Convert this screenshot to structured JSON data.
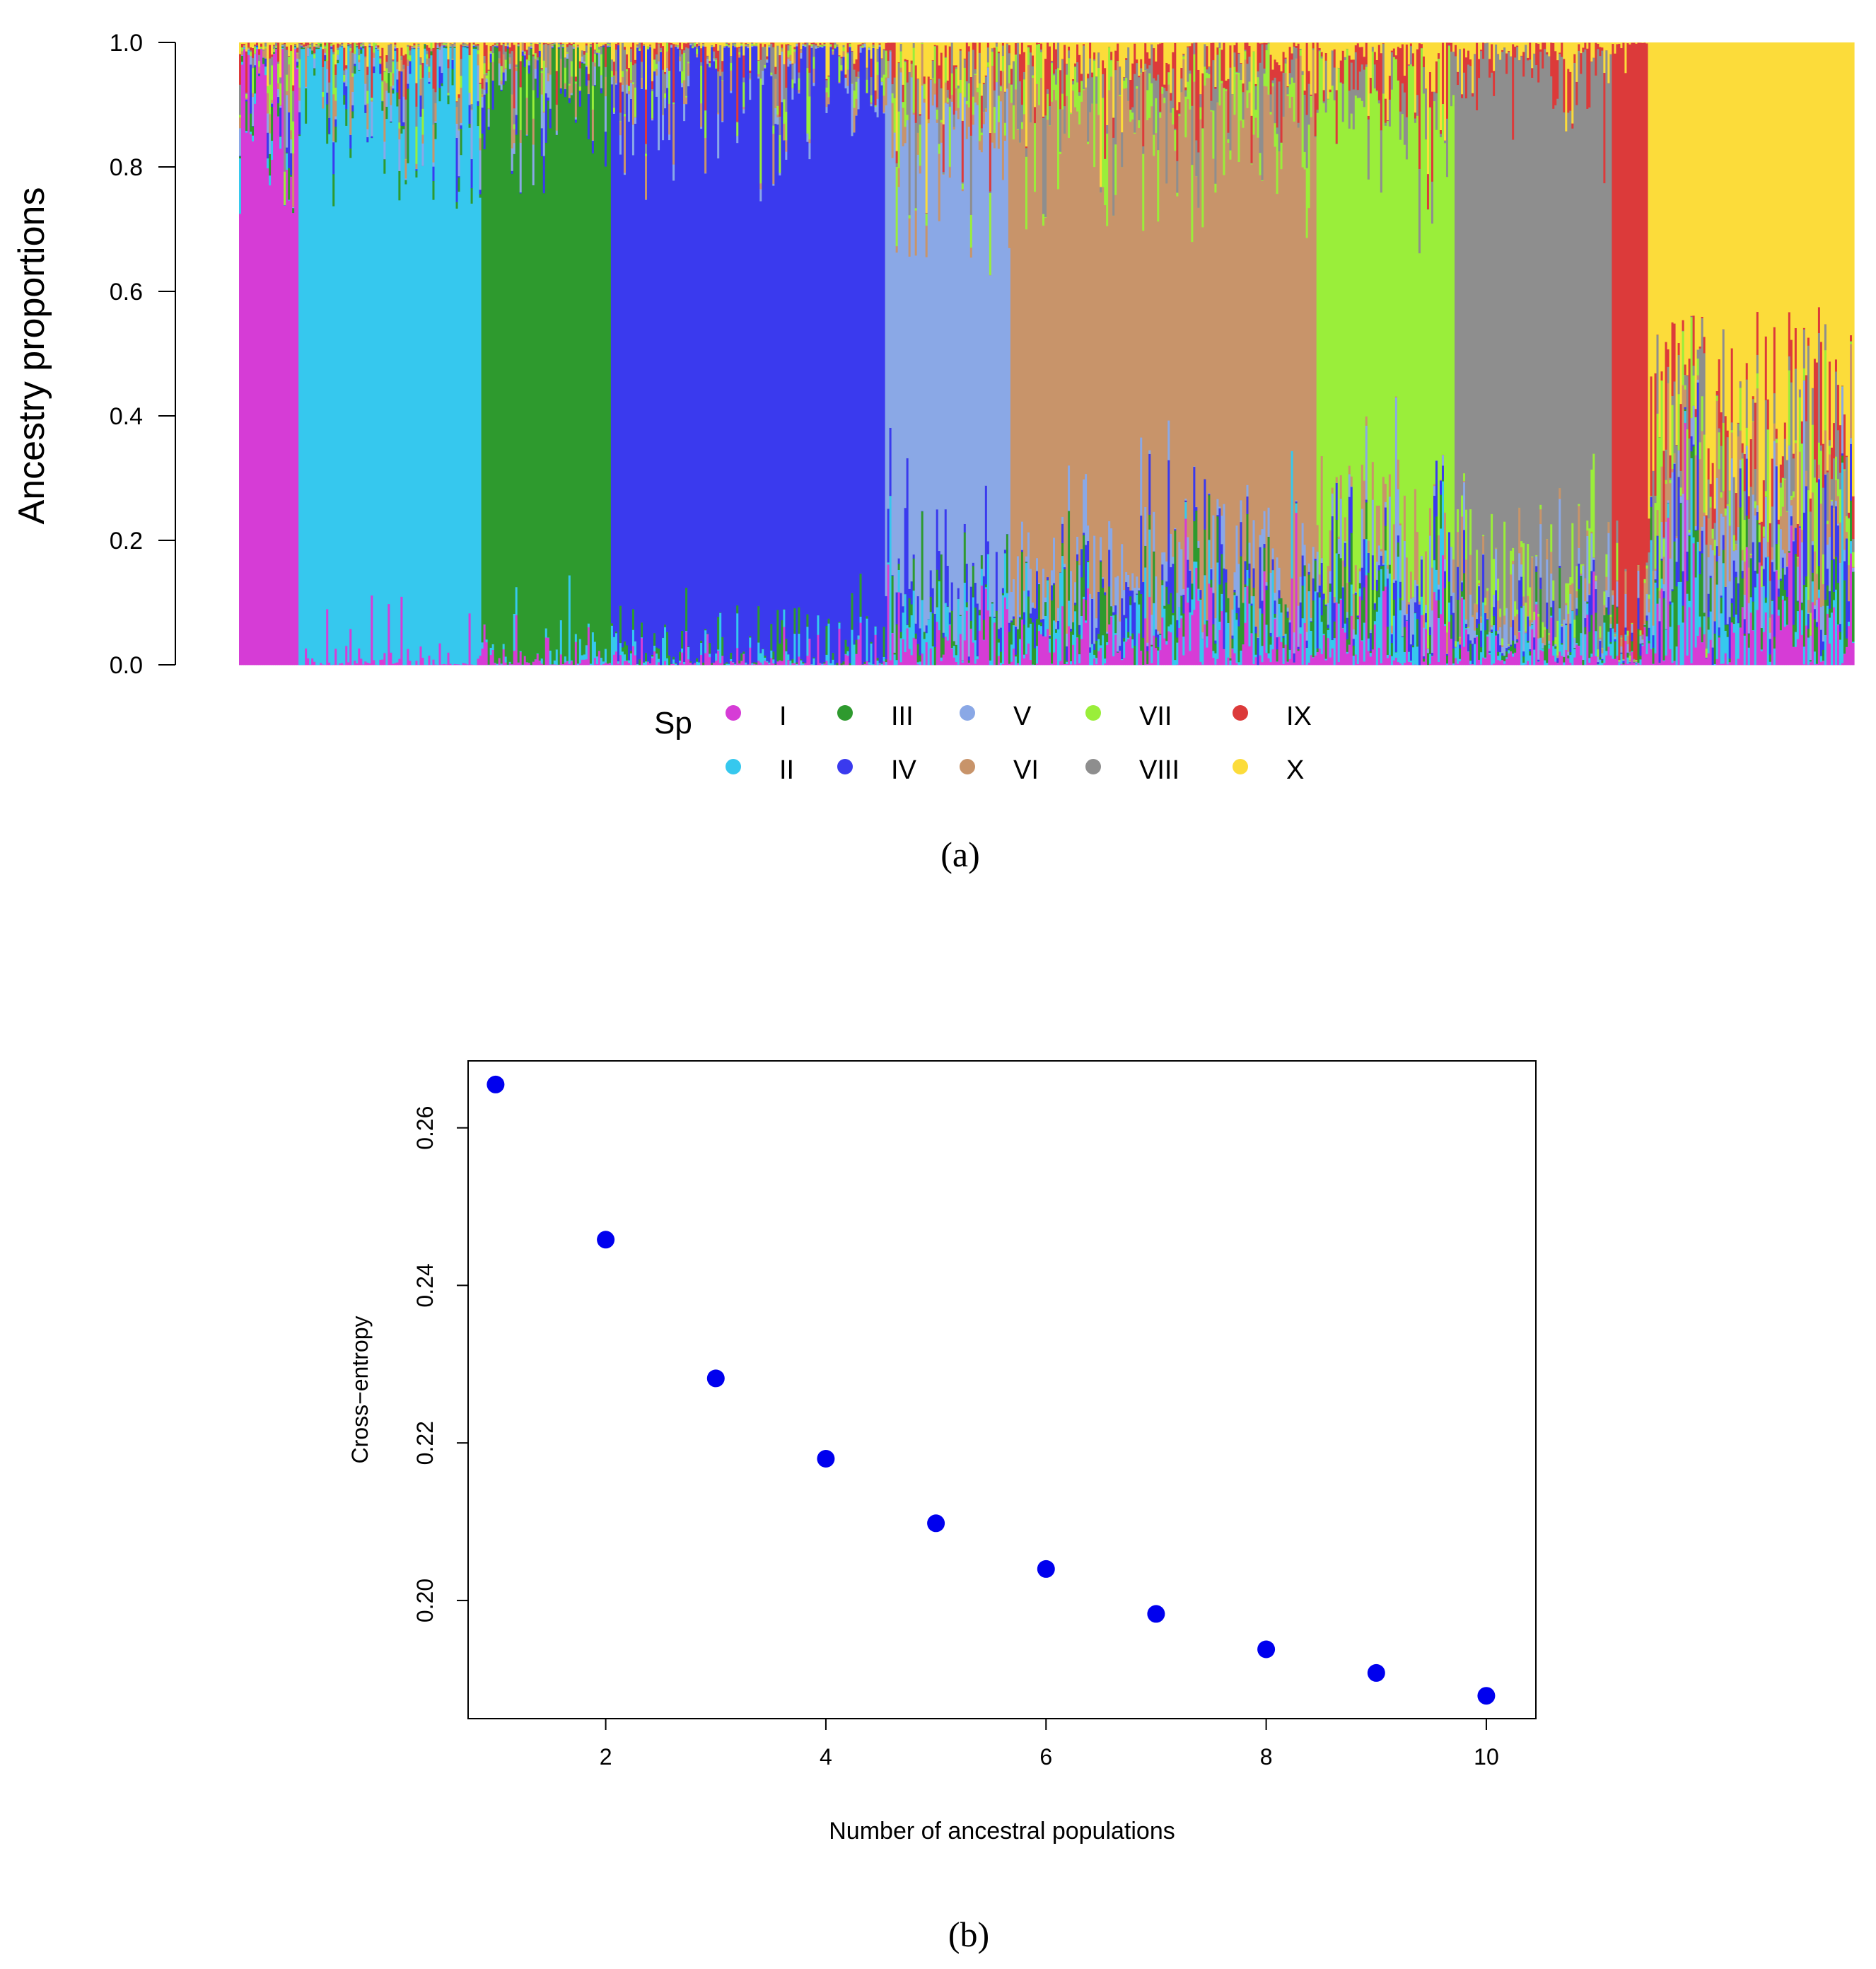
{
  "colors": {
    "I": "#d63cd6",
    "II": "#36c8ee",
    "III": "#2e9a2e",
    "IV": "#3a3aee",
    "V": "#8aa8e6",
    "VI": "#c8946a",
    "VII": "#9aee3a",
    "VIII": "#8e8e8e",
    "IX": "#dc3a3a",
    "X": "#fcdc3a",
    "point": "#0000ee"
  },
  "chart_data": [
    {
      "type": "bar",
      "stacked": true,
      "panel_label": "(a)",
      "ylabel": "Ancestry proportions",
      "ylim": [
        0,
        1
      ],
      "yticks": [
        "0.0",
        "0.2",
        "0.4",
        "0.6",
        "0.8",
        "1.0"
      ],
      "legend": {
        "title": "Sp",
        "placement": "bottom-center",
        "entries": [
          "I",
          "II",
          "III",
          "IV",
          "V",
          "VI",
          "VII",
          "VIII",
          "IX",
          "X"
        ]
      },
      "clusters": [
        {
          "dominant": "I",
          "approx_share": 0.9,
          "weight": 0.037
        },
        {
          "dominant": "II",
          "approx_share": 0.9,
          "weight": 0.113
        },
        {
          "dominant": "III",
          "approx_share": 0.9,
          "weight": 0.08
        },
        {
          "dominant": "IV",
          "approx_share": 0.9,
          "weight": 0.17
        },
        {
          "dominant": "V",
          "approx_share": 0.7,
          "weight": 0.078
        },
        {
          "dominant": "VI",
          "approx_share": 0.7,
          "weight": 0.189
        },
        {
          "dominant": "VII",
          "approx_share": 0.7,
          "weight": 0.086
        },
        {
          "dominant": "VIII",
          "approx_share": 0.8,
          "weight": 0.098
        },
        {
          "dominant": "IX",
          "approx_share": 0.9,
          "weight": 0.023
        },
        {
          "dominant": "X",
          "approx_share": 0.6,
          "weight": 0.126
        }
      ]
    },
    {
      "type": "scatter",
      "panel_label": "(b)",
      "xlabel": "Number of ancestral populations",
      "ylabel": "Cross−entropy",
      "xlim": [
        0.75,
        10.45
      ],
      "ylim": [
        0.185,
        0.2685
      ],
      "xticks": [
        2,
        4,
        6,
        8,
        10
      ],
      "yticks": [
        0.2,
        0.22,
        0.24,
        0.26
      ],
      "ytick_labels": [
        "0.20",
        "0.22",
        "0.24",
        "0.26"
      ],
      "x": [
        1,
        2,
        3,
        4,
        5,
        6,
        7,
        8,
        9,
        10
      ],
      "y": [
        0.2655,
        0.2458,
        0.2282,
        0.218,
        0.2098,
        0.204,
        0.1983,
        0.1938,
        0.1908,
        0.1879
      ]
    }
  ]
}
